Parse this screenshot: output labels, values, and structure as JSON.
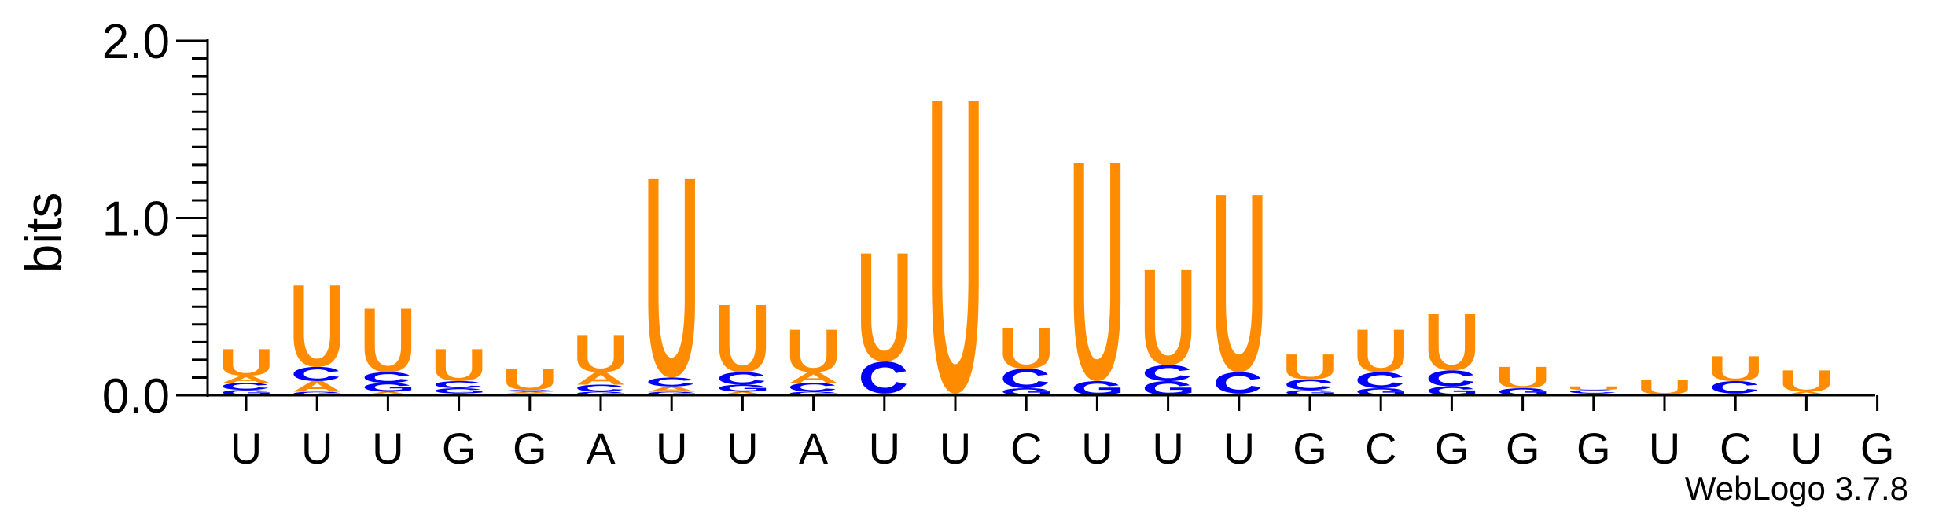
{
  "chart_data": {
    "type": "sequence-logo",
    "ylabel": "bits",
    "ylim": [
      0,
      2.0
    ],
    "yticks": [
      {
        "value": 0.0,
        "label": "0.0"
      },
      {
        "value": 1.0,
        "label": "1.0"
      },
      {
        "value": 2.0,
        "label": "2.0"
      }
    ],
    "x_tick_labels": [
      "U",
      "U",
      "U",
      "G",
      "G",
      "A",
      "U",
      "U",
      "A",
      "U",
      "U",
      "C",
      "U",
      "U",
      "U",
      "G",
      "C",
      "G",
      "G",
      "G",
      "U",
      "C",
      "U",
      "G"
    ],
    "colors": {
      "U": "#FF8C00",
      "A": "#FF8C00",
      "C": "#0000FF",
      "G": "#0000FF"
    },
    "positions": [
      {
        "stack": [
          [
            "G",
            0.03
          ],
          [
            "C",
            0.04
          ],
          [
            "A",
            0.04
          ],
          [
            "U",
            0.15
          ]
        ]
      },
      {
        "stack": [
          [
            "G",
            0.02
          ],
          [
            "A",
            0.06
          ],
          [
            "C",
            0.08
          ],
          [
            "U",
            0.46
          ]
        ]
      },
      {
        "stack": [
          [
            "A",
            0.02
          ],
          [
            "G",
            0.05
          ],
          [
            "C",
            0.06
          ],
          [
            "U",
            0.36
          ]
        ]
      },
      {
        "stack": [
          [
            "A",
            0.01
          ],
          [
            "G",
            0.03
          ],
          [
            "C",
            0.04
          ],
          [
            "U",
            0.18
          ]
        ]
      },
      {
        "stack": [
          [
            "C",
            0.01
          ],
          [
            "A",
            0.01
          ],
          [
            "G",
            0.01
          ],
          [
            "U",
            0.12
          ]
        ]
      },
      {
        "stack": [
          [
            "G",
            0.02
          ],
          [
            "C",
            0.04
          ],
          [
            "A",
            0.07
          ],
          [
            "U",
            0.21
          ]
        ]
      },
      {
        "stack": [
          [
            "G",
            0.02
          ],
          [
            "A",
            0.03
          ],
          [
            "C",
            0.05
          ],
          [
            "U",
            1.12
          ]
        ]
      },
      {
        "stack": [
          [
            "A",
            0.02
          ],
          [
            "G",
            0.04
          ],
          [
            "C",
            0.07
          ],
          [
            "U",
            0.38
          ]
        ]
      },
      {
        "stack": [
          [
            "G",
            0.02
          ],
          [
            "C",
            0.05
          ],
          [
            "A",
            0.06
          ],
          [
            "U",
            0.24
          ]
        ]
      },
      {
        "stack": [
          [
            "A",
            0.01
          ],
          [
            "C",
            0.18
          ],
          [
            "U",
            0.61
          ]
        ]
      },
      {
        "stack": [
          [
            "C",
            0.01
          ],
          [
            "U",
            1.65
          ]
        ]
      },
      {
        "stack": [
          [
            "G",
            0.04
          ],
          [
            "C",
            0.11
          ],
          [
            "U",
            0.23
          ]
        ]
      },
      {
        "stack": [
          [
            "G",
            0.08
          ],
          [
            "U",
            1.23
          ]
        ]
      },
      {
        "stack": [
          [
            "G",
            0.08
          ],
          [
            "C",
            0.09
          ],
          [
            "U",
            0.54
          ]
        ]
      },
      {
        "stack": [
          [
            "A",
            0.01
          ],
          [
            "C",
            0.12
          ],
          [
            "U",
            1.0
          ]
        ]
      },
      {
        "stack": [
          [
            "G",
            0.03
          ],
          [
            "C",
            0.06
          ],
          [
            "U",
            0.14
          ]
        ]
      },
      {
        "stack": [
          [
            "G",
            0.04
          ],
          [
            "C",
            0.09
          ],
          [
            "U",
            0.24
          ]
        ]
      },
      {
        "stack": [
          [
            "G",
            0.05
          ],
          [
            "C",
            0.09
          ],
          [
            "U",
            0.32
          ]
        ]
      },
      {
        "stack": [
          [
            "G",
            0.04
          ],
          [
            "U",
            0.12
          ]
        ]
      },
      {
        "stack": [
          [
            "G",
            0.01
          ],
          [
            "C",
            0.02
          ],
          [
            "U",
            0.02
          ]
        ]
      },
      {
        "stack": [
          [
            "A",
            0.005
          ],
          [
            "U",
            0.08
          ]
        ]
      },
      {
        "stack": [
          [
            "A",
            0.01
          ],
          [
            "C",
            0.07
          ],
          [
            "U",
            0.14
          ]
        ]
      },
      {
        "stack": [
          [
            "A",
            0.02
          ],
          [
            "U",
            0.12
          ]
        ]
      },
      {
        "stack": []
      }
    ]
  },
  "credit": "WebLogo 3.7.8"
}
